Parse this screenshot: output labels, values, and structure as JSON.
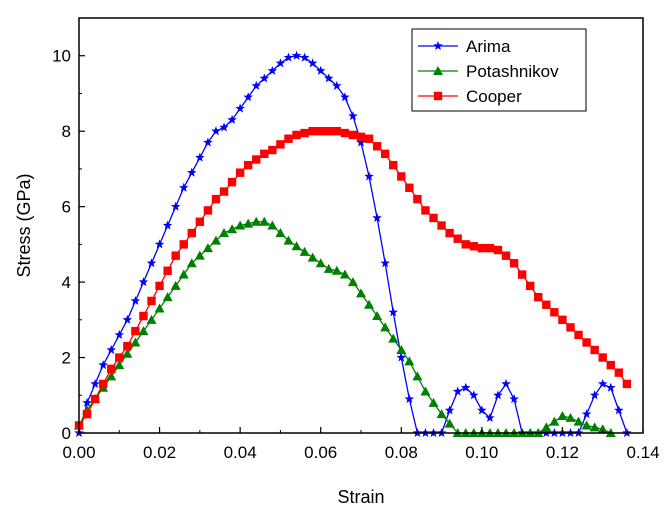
{
  "chart_data": {
    "type": "line",
    "title": "",
    "xlabel": "Strain",
    "ylabel": "Stress (GPa)",
    "xlim": [
      0,
      0.14
    ],
    "ylim": [
      0,
      11
    ],
    "xticks": [
      0.0,
      0.02,
      0.04,
      0.06,
      0.08,
      0.1,
      0.12,
      0.14
    ],
    "xtick_labels": [
      "0.00",
      "0.02",
      "0.04",
      "0.06",
      "0.08",
      "0.10",
      "0.12",
      "0.14"
    ],
    "yticks": [
      0,
      2,
      4,
      6,
      8,
      10
    ],
    "ytick_labels": [
      "0",
      "2",
      "4",
      "6",
      "8",
      "10"
    ],
    "grid": false,
    "legend_position": "top-right",
    "series": [
      {
        "name": "Arima",
        "color": "#0000ff",
        "marker": "star",
        "x": [
          0.0,
          0.002,
          0.004,
          0.006,
          0.008,
          0.01,
          0.012,
          0.014,
          0.016,
          0.018,
          0.02,
          0.022,
          0.024,
          0.026,
          0.028,
          0.03,
          0.032,
          0.034,
          0.036,
          0.038,
          0.04,
          0.042,
          0.044,
          0.046,
          0.048,
          0.05,
          0.052,
          0.054,
          0.056,
          0.058,
          0.06,
          0.062,
          0.064,
          0.066,
          0.068,
          0.07,
          0.072,
          0.074,
          0.076,
          0.078,
          0.08,
          0.082,
          0.084,
          0.086,
          0.088,
          0.09,
          0.092,
          0.094,
          0.096,
          0.098,
          0.1,
          0.102,
          0.104,
          0.106,
          0.108,
          0.11,
          0.112,
          0.114,
          0.116,
          0.118,
          0.12,
          0.122,
          0.124,
          0.126,
          0.128,
          0.13,
          0.132,
          0.134,
          0.136
        ],
        "y": [
          0.0,
          0.8,
          1.3,
          1.8,
          2.2,
          2.6,
          3.0,
          3.5,
          4.0,
          4.5,
          5.0,
          5.5,
          6.0,
          6.5,
          6.9,
          7.3,
          7.7,
          8.0,
          8.1,
          8.3,
          8.6,
          8.9,
          9.2,
          9.4,
          9.6,
          9.8,
          9.95,
          10.0,
          9.95,
          9.8,
          9.6,
          9.4,
          9.2,
          8.9,
          8.4,
          7.7,
          6.8,
          5.7,
          4.5,
          3.2,
          2.0,
          0.9,
          0.0,
          0.0,
          0.0,
          0.0,
          0.6,
          1.1,
          1.2,
          1.0,
          0.6,
          0.4,
          1.0,
          1.3,
          0.9,
          0.0,
          0.0,
          0.0,
          0.0,
          0.0,
          0.0,
          0.0,
          0.0,
          0.5,
          1.0,
          1.3,
          1.2,
          0.6,
          0.0
        ]
      },
      {
        "name": "Potashnikov",
        "color": "#008000",
        "marker": "triangle",
        "x": [
          0.0,
          0.002,
          0.004,
          0.006,
          0.008,
          0.01,
          0.012,
          0.014,
          0.016,
          0.018,
          0.02,
          0.022,
          0.024,
          0.026,
          0.028,
          0.03,
          0.032,
          0.034,
          0.036,
          0.038,
          0.04,
          0.042,
          0.044,
          0.046,
          0.048,
          0.05,
          0.052,
          0.054,
          0.056,
          0.058,
          0.06,
          0.062,
          0.064,
          0.066,
          0.068,
          0.07,
          0.072,
          0.074,
          0.076,
          0.078,
          0.08,
          0.082,
          0.084,
          0.086,
          0.088,
          0.09,
          0.092,
          0.094,
          0.096,
          0.098,
          0.1,
          0.102,
          0.104,
          0.106,
          0.108,
          0.11,
          0.112,
          0.114,
          0.116,
          0.118,
          0.12,
          0.122,
          0.124,
          0.126,
          0.128,
          0.13,
          0.132
        ],
        "y": [
          0.2,
          0.6,
          0.9,
          1.2,
          1.5,
          1.8,
          2.1,
          2.4,
          2.7,
          3.0,
          3.3,
          3.6,
          3.9,
          4.2,
          4.5,
          4.7,
          4.9,
          5.1,
          5.3,
          5.4,
          5.5,
          5.55,
          5.6,
          5.6,
          5.5,
          5.3,
          5.1,
          4.95,
          4.8,
          4.65,
          4.5,
          4.35,
          4.3,
          4.2,
          4.0,
          3.7,
          3.4,
          3.1,
          2.8,
          2.5,
          2.2,
          1.9,
          1.5,
          1.1,
          0.8,
          0.5,
          0.25,
          0.0,
          0.0,
          0.0,
          0.0,
          0.0,
          0.0,
          0.0,
          0.0,
          0.0,
          0.0,
          0.0,
          0.15,
          0.3,
          0.45,
          0.4,
          0.3,
          0.2,
          0.15,
          0.1,
          0.0
        ]
      },
      {
        "name": "Cooper",
        "color": "#ff0000",
        "marker": "square",
        "x": [
          0.0,
          0.002,
          0.004,
          0.006,
          0.008,
          0.01,
          0.012,
          0.014,
          0.016,
          0.018,
          0.02,
          0.022,
          0.024,
          0.026,
          0.028,
          0.03,
          0.032,
          0.034,
          0.036,
          0.038,
          0.04,
          0.042,
          0.044,
          0.046,
          0.048,
          0.05,
          0.052,
          0.054,
          0.056,
          0.058,
          0.06,
          0.062,
          0.064,
          0.066,
          0.068,
          0.07,
          0.072,
          0.074,
          0.076,
          0.078,
          0.08,
          0.082,
          0.084,
          0.086,
          0.088,
          0.09,
          0.092,
          0.094,
          0.096,
          0.098,
          0.1,
          0.102,
          0.104,
          0.106,
          0.108,
          0.11,
          0.112,
          0.114,
          0.116,
          0.118,
          0.12,
          0.122,
          0.124,
          0.126,
          0.128,
          0.13,
          0.132,
          0.134,
          0.136
        ],
        "y": [
          0.2,
          0.5,
          0.9,
          1.3,
          1.7,
          2.0,
          2.3,
          2.7,
          3.1,
          3.5,
          3.9,
          4.3,
          4.7,
          5.0,
          5.3,
          5.6,
          5.9,
          6.2,
          6.4,
          6.65,
          6.9,
          7.1,
          7.25,
          7.4,
          7.5,
          7.65,
          7.8,
          7.9,
          7.95,
          8.0,
          8.0,
          8.0,
          8.0,
          7.95,
          7.9,
          7.85,
          7.8,
          7.6,
          7.4,
          7.1,
          6.8,
          6.5,
          6.2,
          5.9,
          5.7,
          5.5,
          5.3,
          5.15,
          5.0,
          4.95,
          4.9,
          4.9,
          4.85,
          4.7,
          4.5,
          4.2,
          3.9,
          3.6,
          3.4,
          3.2,
          3.0,
          2.8,
          2.6,
          2.4,
          2.2,
          2.0,
          1.8,
          1.6,
          1.3
        ]
      }
    ]
  }
}
